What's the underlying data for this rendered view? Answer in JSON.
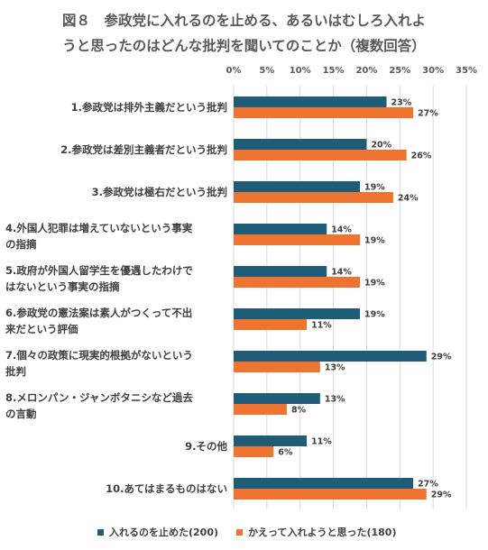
{
  "chart_data": {
    "type": "bar",
    "orientation": "horizontal",
    "title_line1": "図８　参政党に入れるのを止める、あるいはむしろ入れよ",
    "title_line2": "うと思ったのはどんな批判を聞いてのことか（複数回答）",
    "categories": [
      [
        "1.参政党は排外主義だという批判"
      ],
      [
        "2.参政党は差別主義者だという批判"
      ],
      [
        "3.参政党は極右だという批判"
      ],
      [
        "4.外国人犯罪は増えていないという事実",
        "の指摘"
      ],
      [
        "5.政府が外国人留学生を優遇したわけで",
        "はないという事実の指摘"
      ],
      [
        "6.参政党の憲法案は素人がつくって不出",
        "来だという評価"
      ],
      [
        "7.個々の政策に現実的根拠がないという",
        "批判"
      ],
      [
        "8.メロンパン・ジャンボタニシなど過去",
        "の言動"
      ],
      [
        "9.その他"
      ],
      [
        "10.あてはまるものはない"
      ]
    ],
    "xlim": [
      0,
      35
    ],
    "x_ticks": [
      "0%",
      "5%",
      "10%",
      "15%",
      "20%",
      "25%",
      "30%",
      "35%"
    ],
    "grid": true,
    "legend_position": "bottom",
    "series": [
      {
        "name": "入れるのを止めた(200)",
        "color": "#1f5c78",
        "values": [
          23,
          20,
          19,
          14,
          14,
          19,
          29,
          13,
          11,
          27
        ],
        "labels": [
          "23%",
          "20%",
          "19%",
          "14%",
          "14%",
          "19%",
          "29%",
          "13%",
          "11%",
          "27%"
        ]
      },
      {
        "name": "かえって入れようと思った(180)",
        "color": "#ee7430",
        "values": [
          27,
          26,
          24,
          19,
          19,
          11,
          13,
          8,
          6,
          29
        ],
        "labels": [
          "27%",
          "26%",
          "24%",
          "19%",
          "19%",
          "11%",
          "13%",
          "8%",
          "6%",
          "29%"
        ]
      }
    ]
  }
}
